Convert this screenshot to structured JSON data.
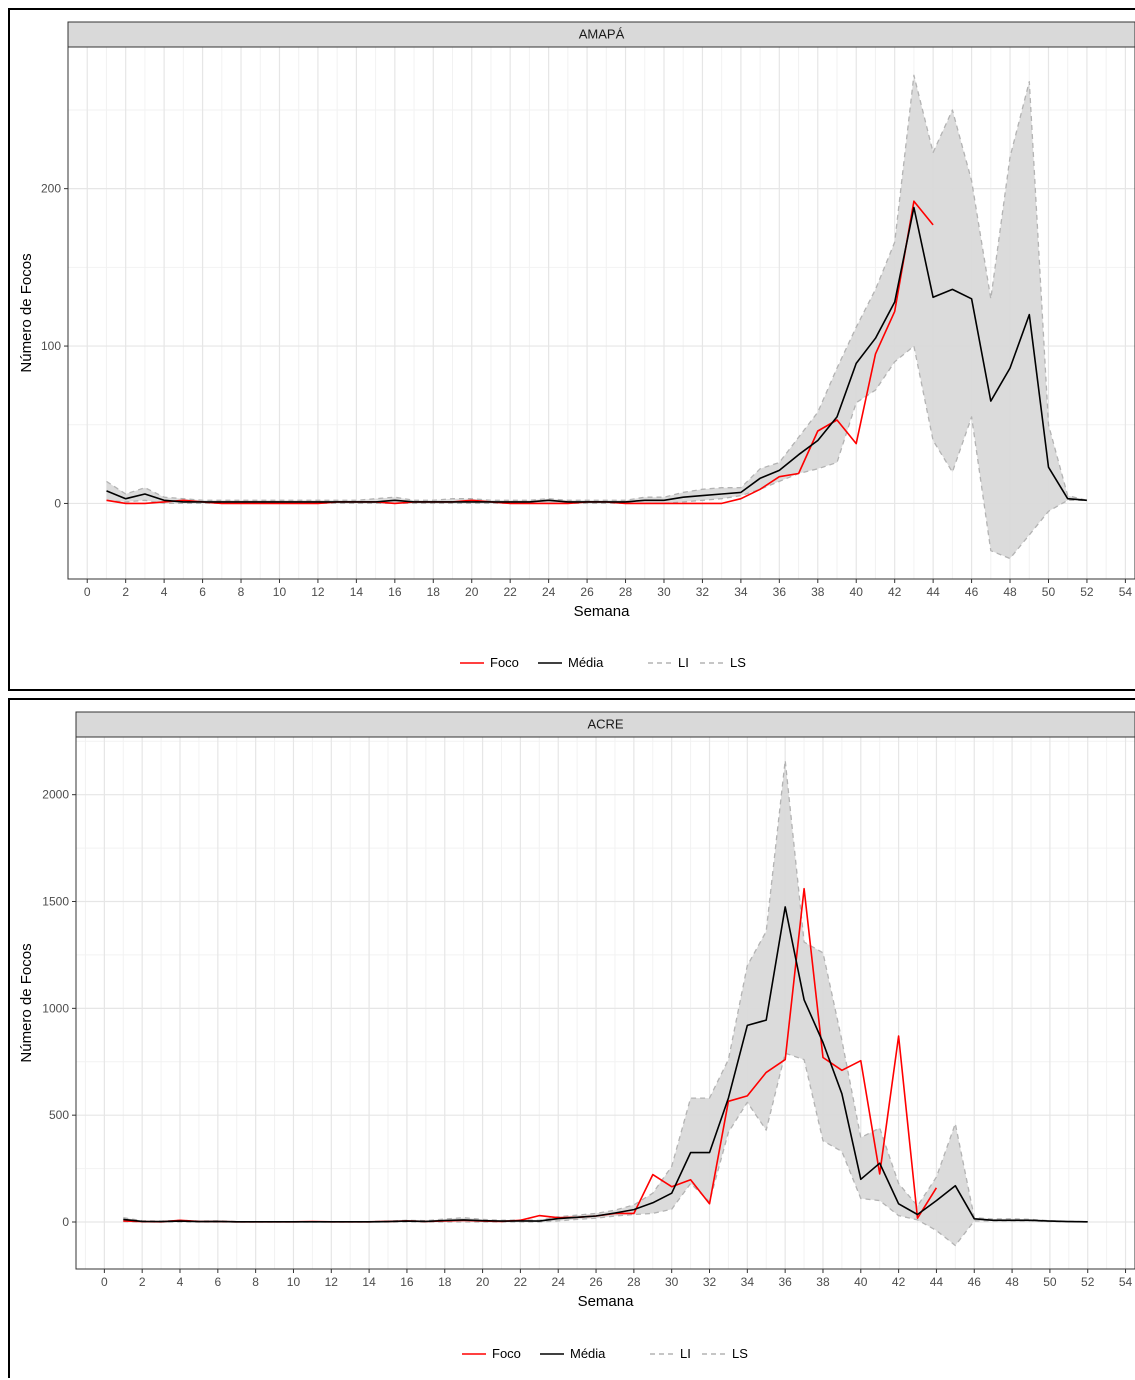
{
  "chart_data": [
    {
      "type": "line",
      "facet": "AMAPÁ",
      "xlabel": "Semana",
      "ylabel": "Número de Focos",
      "xlim": [
        -1,
        54.5
      ],
      "ylim": [
        -48,
        290
      ],
      "x_ticks": [
        "0",
        "2",
        "4",
        "6",
        "8",
        "10",
        "12",
        "14",
        "16",
        "18",
        "20",
        "22",
        "24",
        "26",
        "28",
        "30",
        "32",
        "34",
        "36",
        "38",
        "40",
        "42",
        "44",
        "46",
        "48",
        "50",
        "52",
        "54"
      ],
      "y_ticks": [
        "0",
        "100",
        "200"
      ],
      "grid": true,
      "legend_position": "bottom",
      "legend": [
        "Foco",
        "Média",
        "LI",
        "LS"
      ],
      "colors": {
        "foco": "#ff0000",
        "media": "#000000",
        "ribbon": "#d9d9d9",
        "ribbon_line": "#b3b3b3"
      },
      "series": [
        {
          "name": "Foco",
          "x": [
            1,
            2,
            3,
            4,
            5,
            6,
            7,
            8,
            9,
            10,
            11,
            12,
            13,
            14,
            15,
            16,
            17,
            18,
            19,
            20,
            21,
            22,
            23,
            24,
            25,
            26,
            27,
            28,
            29,
            30,
            31,
            32,
            33,
            34,
            35,
            36,
            37,
            38,
            39,
            40,
            41,
            42,
            43,
            44
          ],
          "values": [
            2,
            0,
            0,
            1,
            2,
            1,
            0,
            0,
            0,
            0,
            0,
            0,
            1,
            1,
            1,
            0,
            1,
            1,
            1,
            2,
            1,
            0,
            0,
            0,
            0,
            1,
            1,
            0,
            0,
            0,
            0,
            0,
            0,
            3,
            9,
            17,
            19,
            46,
            53,
            38,
            95,
            122,
            192,
            177
          ]
        },
        {
          "name": "Média",
          "x": [
            1,
            2,
            3,
            4,
            5,
            6,
            7,
            8,
            9,
            10,
            11,
            12,
            13,
            14,
            15,
            16,
            17,
            18,
            19,
            20,
            21,
            22,
            23,
            24,
            25,
            26,
            27,
            28,
            29,
            30,
            31,
            32,
            33,
            34,
            35,
            36,
            37,
            38,
            39,
            40,
            41,
            42,
            43,
            44,
            45,
            46,
            47,
            48,
            49,
            50,
            51,
            52
          ],
          "values": [
            8,
            3,
            6,
            2,
            1,
            1,
            1,
            1,
            1,
            1,
            1,
            1,
            1,
            1,
            1,
            2,
            1,
            1,
            1,
            1,
            1,
            1,
            1,
            2,
            1,
            1,
            1,
            1,
            2,
            2,
            4,
            5,
            6,
            7,
            16,
            21,
            31,
            40,
            55,
            89,
            105,
            128,
            188,
            131,
            136,
            130,
            65,
            86,
            120,
            23,
            3,
            2
          ]
        },
        {
          "name": "LI",
          "x": [
            1,
            2,
            3,
            4,
            5,
            6,
            7,
            8,
            9,
            10,
            11,
            12,
            13,
            14,
            15,
            16,
            17,
            18,
            19,
            20,
            21,
            22,
            23,
            24,
            25,
            26,
            27,
            28,
            29,
            30,
            31,
            32,
            33,
            34,
            35,
            36,
            37,
            38,
            39,
            40,
            41,
            42,
            43,
            44,
            45,
            46,
            47,
            48,
            49,
            50,
            51,
            52
          ],
          "values": [
            2,
            1,
            2,
            0,
            0,
            0,
            0,
            0,
            0,
            0,
            0,
            0,
            0,
            0,
            0,
            0,
            0,
            0,
            0,
            0,
            0,
            0,
            0,
            0,
            0,
            0,
            0,
            0,
            0,
            0,
            1,
            2,
            3,
            5,
            9,
            14,
            19,
            22,
            26,
            64,
            72,
            90,
            100,
            40,
            20,
            55,
            -30,
            -35,
            -20,
            -5,
            2,
            2
          ]
        },
        {
          "name": "LS",
          "x": [
            1,
            2,
            3,
            4,
            5,
            6,
            7,
            8,
            9,
            10,
            11,
            12,
            13,
            14,
            15,
            16,
            17,
            18,
            19,
            20,
            21,
            22,
            23,
            24,
            25,
            26,
            27,
            28,
            29,
            30,
            31,
            32,
            33,
            34,
            35,
            36,
            37,
            38,
            39,
            40,
            41,
            42,
            43,
            44,
            45,
            46,
            47,
            48,
            49,
            50,
            51,
            52
          ],
          "values": [
            14,
            6,
            10,
            4,
            3,
            2,
            2,
            2,
            2,
            2,
            2,
            2,
            2,
            2,
            3,
            4,
            2,
            2,
            3,
            3,
            2,
            2,
            2,
            3,
            2,
            2,
            2,
            2,
            4,
            4,
            7,
            9,
            10,
            10,
            22,
            26,
            42,
            58,
            86,
            112,
            136,
            166,
            272,
            223,
            250,
            205,
            130,
            220,
            268,
            50,
            5,
            2
          ]
        }
      ]
    },
    {
      "type": "line",
      "facet": "ACRE",
      "xlabel": "Semana",
      "ylabel": "Número de Focos",
      "xlim": [
        -1.5,
        54.5
      ],
      "ylim": [
        -220,
        2270
      ],
      "x_ticks": [
        "0",
        "2",
        "4",
        "6",
        "8",
        "10",
        "12",
        "14",
        "16",
        "18",
        "20",
        "22",
        "24",
        "26",
        "28",
        "30",
        "32",
        "34",
        "36",
        "38",
        "40",
        "42",
        "44",
        "46",
        "48",
        "50",
        "52",
        "54"
      ],
      "y_ticks": [
        "0",
        "500",
        "1000",
        "1500",
        "2000"
      ],
      "grid": true,
      "legend_position": "bottom",
      "legend": [
        "Foco",
        "Média",
        "LI",
        "LS"
      ],
      "colors": {
        "foco": "#ff0000",
        "media": "#000000",
        "ribbon": "#d9d9d9",
        "ribbon_line": "#b3b3b3"
      },
      "series": [
        {
          "name": "Foco",
          "x": [
            1,
            2,
            3,
            4,
            5,
            6,
            7,
            8,
            9,
            10,
            11,
            12,
            13,
            14,
            15,
            16,
            17,
            18,
            19,
            20,
            21,
            22,
            23,
            24,
            25,
            26,
            27,
            28,
            29,
            30,
            31,
            32,
            33,
            34,
            35,
            36,
            37,
            38,
            39,
            40,
            41,
            42,
            43,
            44
          ],
          "values": [
            5,
            2,
            1,
            8,
            3,
            2,
            1,
            1,
            1,
            1,
            2,
            1,
            1,
            1,
            3,
            5,
            3,
            5,
            8,
            4,
            3,
            8,
            30,
            20,
            22,
            28,
            40,
            40,
            222,
            165,
            198,
            85,
            565,
            590,
            700,
            760,
            1560,
            770,
            710,
            755,
            225,
            870,
            18,
            160
          ]
        },
        {
          "name": "Média",
          "x": [
            1,
            2,
            3,
            4,
            5,
            6,
            7,
            8,
            9,
            10,
            11,
            12,
            13,
            14,
            15,
            16,
            17,
            18,
            19,
            20,
            21,
            22,
            23,
            24,
            25,
            26,
            27,
            28,
            29,
            30,
            31,
            32,
            33,
            34,
            35,
            36,
            37,
            38,
            39,
            40,
            41,
            42,
            43,
            44,
            45,
            46,
            47,
            48,
            49,
            50,
            51,
            52
          ],
          "values": [
            12,
            3,
            2,
            4,
            2,
            3,
            1,
            1,
            1,
            1,
            1,
            1,
            1,
            1,
            2,
            4,
            3,
            7,
            10,
            6,
            4,
            5,
            4,
            16,
            22,
            28,
            42,
            58,
            90,
            135,
            325,
            325,
            580,
            920,
            945,
            1475,
            1040,
            840,
            600,
            200,
            275,
            85,
            35,
            100,
            170,
            15,
            8,
            8,
            8,
            4,
            2,
            1
          ]
        },
        {
          "name": "LI",
          "x": [
            1,
            2,
            3,
            4,
            5,
            6,
            7,
            8,
            9,
            10,
            11,
            12,
            13,
            14,
            15,
            16,
            17,
            18,
            19,
            20,
            21,
            22,
            23,
            24,
            25,
            26,
            27,
            28,
            29,
            30,
            31,
            32,
            33,
            34,
            35,
            36,
            37,
            38,
            39,
            40,
            41,
            42,
            43,
            44,
            45,
            46,
            47,
            48,
            49,
            50,
            51,
            52
          ],
          "values": [
            2,
            0,
            0,
            0,
            0,
            0,
            0,
            0,
            0,
            0,
            0,
            0,
            0,
            0,
            0,
            0,
            0,
            0,
            0,
            0,
            0,
            0,
            0,
            5,
            12,
            18,
            28,
            35,
            40,
            60,
            180,
            95,
            420,
            560,
            430,
            790,
            760,
            380,
            330,
            110,
            100,
            30,
            10,
            -40,
            -110,
            5,
            5,
            5,
            5,
            2,
            1,
            0
          ]
        },
        {
          "name": "LS",
          "x": [
            1,
            2,
            3,
            4,
            5,
            6,
            7,
            8,
            9,
            10,
            11,
            12,
            13,
            14,
            15,
            16,
            17,
            18,
            19,
            20,
            21,
            22,
            23,
            24,
            25,
            26,
            27,
            28,
            29,
            30,
            31,
            32,
            33,
            34,
            35,
            36,
            37,
            38,
            39,
            40,
            41,
            42,
            43,
            44,
            45,
            46,
            47,
            48,
            49,
            50,
            51,
            52
          ],
          "values": [
            20,
            6,
            4,
            8,
            4,
            5,
            2,
            2,
            2,
            2,
            2,
            2,
            2,
            2,
            4,
            8,
            6,
            14,
            20,
            12,
            8,
            10,
            8,
            25,
            32,
            40,
            55,
            80,
            135,
            260,
            580,
            580,
            760,
            1200,
            1360,
            2160,
            1310,
            1260,
            850,
            395,
            440,
            180,
            75,
            210,
            460,
            20,
            14,
            15,
            12,
            6,
            3,
            2
          ]
        }
      ]
    }
  ]
}
